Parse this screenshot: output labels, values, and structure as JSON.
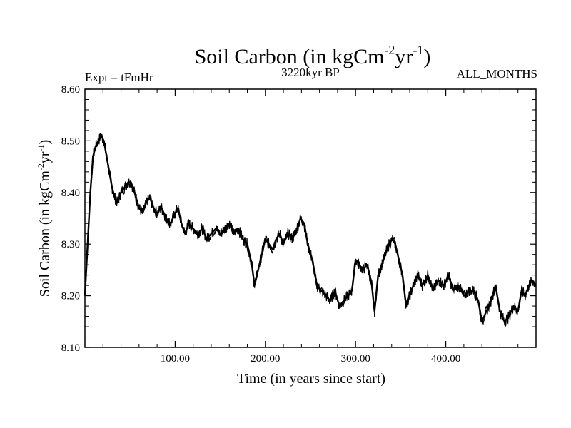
{
  "chart_data": {
    "type": "line",
    "title": {
      "base": "Soil Carbon (in kgCm",
      "sup1": "-2",
      "mid": "yr",
      "sup2": "-1",
      "end": ")"
    },
    "subtitle_left": "Expt = tFmHr",
    "subtitle_center": "3220kyr BP",
    "subtitle_right": "ALL_MONTHS",
    "xlabel": "Time (in years since start)",
    "ylabel": {
      "base": "Soil Carbon (in kgCm",
      "sup1": "-2",
      "mid": "yr",
      "sup2": "-1",
      "end": ")"
    },
    "xlim": [
      0,
      500
    ],
    "ylim": [
      8.1,
      8.6
    ],
    "xticks": [
      {
        "value": 100,
        "label": "100.00"
      },
      {
        "value": 200,
        "label": "200.00"
      },
      {
        "value": 300,
        "label": "300.00"
      },
      {
        "value": 400,
        "label": "400.00"
      }
    ],
    "yticks": [
      {
        "value": 8.1,
        "label": "8.10"
      },
      {
        "value": 8.2,
        "label": "8.20"
      },
      {
        "value": 8.3,
        "label": "8.30"
      },
      {
        "value": 8.4,
        "label": "8.40"
      },
      {
        "value": 8.5,
        "label": "8.50"
      },
      {
        "value": 8.6,
        "label": "8.60"
      }
    ],
    "grid": false,
    "series": [
      {
        "name": "Soil Carbon",
        "color": "#000000",
        "x": [
          0,
          3,
          6,
          9,
          12,
          15,
          18,
          21,
          24,
          27,
          30,
          33,
          36,
          40,
          44,
          48,
          51,
          55,
          60,
          64,
          68,
          72,
          76,
          80,
          85,
          90,
          95,
          100,
          103,
          107,
          111,
          115,
          120,
          125,
          130,
          135,
          140,
          145,
          150,
          155,
          160,
          165,
          170,
          175,
          180,
          185,
          188,
          192,
          196,
          200,
          204,
          208,
          212,
          216,
          220,
          225,
          230,
          235,
          239,
          243,
          247,
          252,
          257,
          262,
          267,
          272,
          277,
          282,
          287,
          292,
          296,
          300,
          304,
          308,
          313,
          318,
          321,
          325,
          329,
          333,
          337,
          341,
          344,
          348,
          352,
          356,
          360,
          364,
          369,
          374,
          380,
          386,
          392,
          398,
          403,
          408,
          414,
          420,
          426,
          431,
          436,
          440,
          445,
          450,
          455,
          460,
          465,
          470,
          475,
          480,
          484,
          488,
          492,
          496,
          500
        ],
        "y": [
          8.2,
          8.3,
          8.4,
          8.47,
          8.49,
          8.5,
          8.51,
          8.5,
          8.47,
          8.44,
          8.41,
          8.39,
          8.38,
          8.4,
          8.41,
          8.42,
          8.42,
          8.4,
          8.37,
          8.36,
          8.38,
          8.39,
          8.37,
          8.36,
          8.37,
          8.35,
          8.34,
          8.36,
          8.37,
          8.34,
          8.32,
          8.34,
          8.33,
          8.32,
          8.33,
          8.31,
          8.32,
          8.33,
          8.32,
          8.33,
          8.34,
          8.32,
          8.33,
          8.31,
          8.3,
          8.26,
          8.22,
          8.25,
          8.28,
          8.31,
          8.3,
          8.29,
          8.31,
          8.32,
          8.3,
          8.32,
          8.31,
          8.33,
          8.35,
          8.34,
          8.3,
          8.27,
          8.22,
          8.21,
          8.2,
          8.19,
          8.21,
          8.18,
          8.19,
          8.2,
          8.21,
          8.27,
          8.26,
          8.25,
          8.26,
          8.22,
          8.17,
          8.24,
          8.26,
          8.28,
          8.3,
          8.31,
          8.3,
          8.27,
          8.24,
          8.18,
          8.2,
          8.22,
          8.24,
          8.22,
          8.24,
          8.21,
          8.23,
          8.22,
          8.24,
          8.21,
          8.22,
          8.2,
          8.21,
          8.21,
          8.19,
          8.15,
          8.17,
          8.19,
          8.22,
          8.17,
          8.15,
          8.16,
          8.18,
          8.17,
          8.21,
          8.2,
          8.22,
          8.23,
          8.22
        ]
      }
    ]
  }
}
